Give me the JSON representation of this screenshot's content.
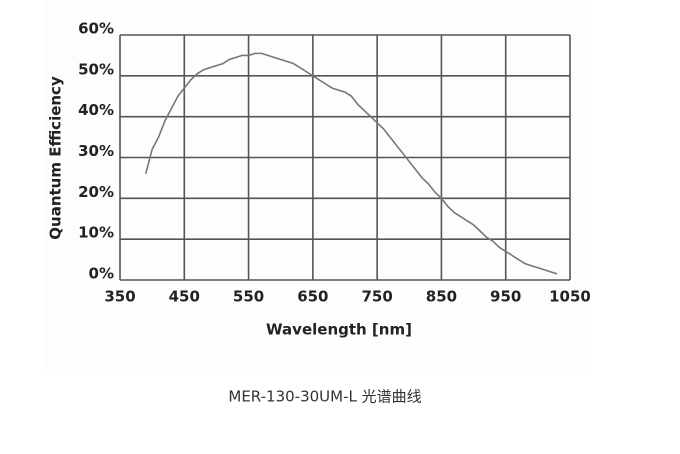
{
  "chart_data": {
    "type": "line",
    "caption": "MER-130-30UM-L 光谱曲线",
    "x_label": "Wavelength [nm]",
    "y_label": "Quantum Efficiency",
    "x": [
      390,
      400,
      410,
      420,
      430,
      440,
      450,
      460,
      470,
      480,
      490,
      500,
      510,
      520,
      530,
      540,
      550,
      560,
      570,
      580,
      590,
      600,
      610,
      620,
      630,
      640,
      650,
      660,
      670,
      680,
      690,
      700,
      710,
      720,
      730,
      740,
      750,
      760,
      770,
      780,
      790,
      800,
      810,
      820,
      830,
      840,
      850,
      860,
      870,
      880,
      890,
      900,
      910,
      920,
      930,
      940,
      950,
      960,
      970,
      980,
      990,
      1000,
      1010,
      1020,
      1030
    ],
    "series": [
      {
        "color": "#777777",
        "values": [
          26,
          32,
          35,
          39,
          42,
          45,
          47,
          49,
          50.5,
          51.5,
          52,
          52.5,
          53,
          54,
          54.5,
          55,
          55,
          55.5,
          55.5,
          55,
          54.5,
          54,
          53.5,
          53,
          52,
          51,
          50,
          49,
          48,
          47,
          46.5,
          46,
          45,
          43,
          41.5,
          40,
          38.5,
          37,
          35,
          33,
          31,
          29,
          27,
          25,
          23.5,
          21.5,
          20,
          18,
          16.5,
          15.5,
          14.5,
          13.5,
          12,
          10.5,
          9.5,
          8,
          7,
          6,
          5,
          4,
          3.5,
          3,
          2.5,
          2,
          1.5
        ]
      }
    ],
    "xlim": [
      350,
      1050
    ],
    "xticks": [
      350,
      450,
      550,
      650,
      750,
      850,
      950,
      1050
    ],
    "ylim": [
      0,
      60
    ],
    "yticks": [
      {
        "value": 0,
        "label": "0%"
      },
      {
        "value": 10,
        "label": "10%"
      },
      {
        "value": 20,
        "label": "20%"
      },
      {
        "value": 30,
        "label": "30%"
      },
      {
        "value": 40,
        "label": "40%"
      },
      {
        "value": 50,
        "label": "50%"
      },
      {
        "value": 60,
        "label": "60%"
      }
    ],
    "grid": true
  }
}
